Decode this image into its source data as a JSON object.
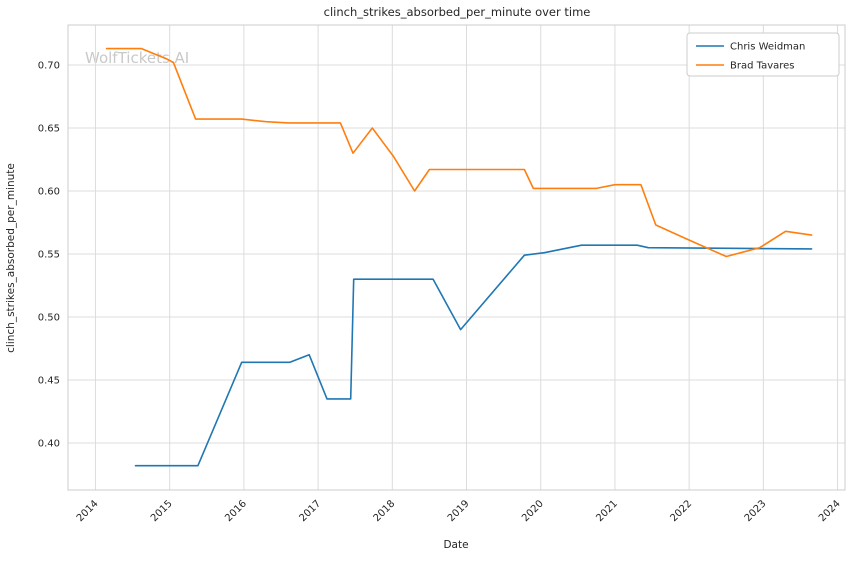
{
  "chart_data": {
    "type": "line",
    "title": "clinch_strikes_absorbed_per_minute over time",
    "xlabel": "Date",
    "ylabel": "clinch_strikes_absorbed_per_minute",
    "watermark": "WolfTickets.AI",
    "xlim": [
      2013.63,
      2024.1
    ],
    "ylim": [
      0.3627,
      0.7317
    ],
    "xticks": [
      2014,
      2015,
      2016,
      2017,
      2018,
      2019,
      2020,
      2021,
      2022,
      2023,
      2024
    ],
    "yticks": [
      0.4,
      0.45,
      0.5,
      0.55,
      0.6,
      0.65,
      0.7
    ],
    "grid": true,
    "legend_position": "upper right",
    "colors": {
      "chris": "#1f77b4",
      "brad": "#ff7f0e",
      "grid": "#dcdcdc",
      "spine": "#cccccc",
      "text": "#262626",
      "watermark": "#c9c9c9"
    },
    "series": [
      {
        "name": "Chris Weidman",
        "color_key": "chris",
        "points": [
          [
            2014.54,
            0.382
          ],
          [
            2015.05,
            0.382
          ],
          [
            2015.38,
            0.382
          ],
          [
            2015.97,
            0.464
          ],
          [
            2016.62,
            0.464
          ],
          [
            2016.88,
            0.47
          ],
          [
            2017.12,
            0.435
          ],
          [
            2017.44,
            0.435
          ],
          [
            2017.48,
            0.53
          ],
          [
            2018.55,
            0.53
          ],
          [
            2018.92,
            0.49
          ],
          [
            2019.78,
            0.549
          ],
          [
            2020.05,
            0.551
          ],
          [
            2020.55,
            0.557
          ],
          [
            2021.3,
            0.557
          ],
          [
            2021.45,
            0.555
          ],
          [
            2023.65,
            0.554
          ]
        ]
      },
      {
        "name": "Brad Tavares",
        "color_key": "brad",
        "points": [
          [
            2014.15,
            0.713
          ],
          [
            2014.62,
            0.713
          ],
          [
            2014.95,
            0.705
          ],
          [
            2015.05,
            0.702
          ],
          [
            2015.35,
            0.657
          ],
          [
            2015.97,
            0.657
          ],
          [
            2016.3,
            0.655
          ],
          [
            2016.6,
            0.654
          ],
          [
            2017.3,
            0.654
          ],
          [
            2017.47,
            0.63
          ],
          [
            2017.73,
            0.65
          ],
          [
            2018.02,
            0.627
          ],
          [
            2018.3,
            0.6
          ],
          [
            2018.5,
            0.617
          ],
          [
            2019.78,
            0.617
          ],
          [
            2019.9,
            0.602
          ],
          [
            2020.75,
            0.602
          ],
          [
            2021.0,
            0.605
          ],
          [
            2021.35,
            0.605
          ],
          [
            2021.55,
            0.573
          ],
          [
            2022.0,
            0.561
          ],
          [
            2022.5,
            0.548
          ],
          [
            2022.95,
            0.555
          ],
          [
            2023.3,
            0.568
          ],
          [
            2023.65,
            0.565
          ]
        ]
      }
    ]
  }
}
